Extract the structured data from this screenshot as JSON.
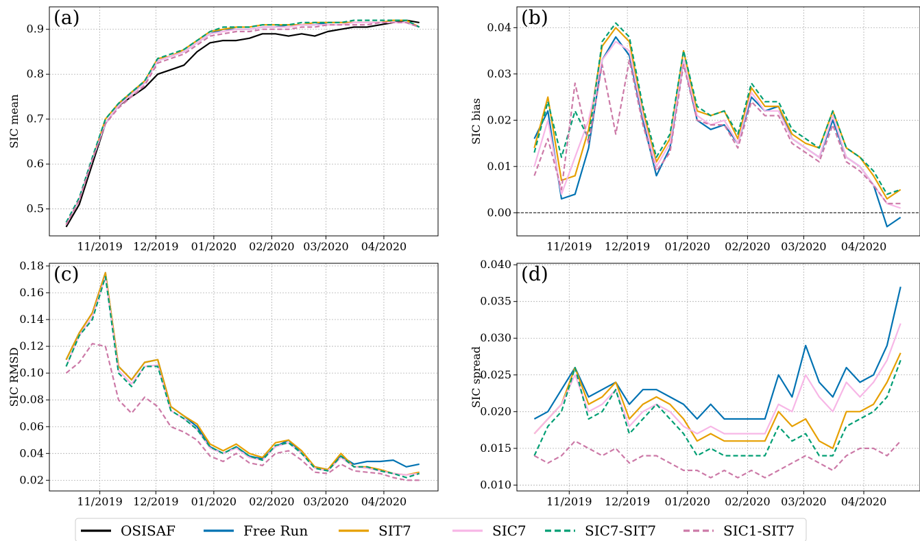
{
  "colors": {
    "OSISAF": "#000000",
    "Free Run": "#0072b2",
    "SIT7": "#e69f00",
    "SIC7": "#f7b6e6",
    "SIC7-SIT7": "#009e73",
    "SIC1-SIT7": "#cc79a7"
  },
  "legend": {
    "entries": [
      {
        "label": "OSISAF",
        "dash": "solid"
      },
      {
        "label": "Free Run",
        "dash": "solid"
      },
      {
        "label": "SIT7",
        "dash": "solid"
      },
      {
        "label": "SIC7",
        "dash": "solid"
      },
      {
        "label": "SIC7-SIT7",
        "dash": "dashed"
      },
      {
        "label": "SIC1-SIT7",
        "dash": "dashed"
      }
    ],
    "placement": "bottom-center"
  },
  "chart_data": [
    {
      "type": "line",
      "panel": "(a)",
      "ylabel": "SIC mean",
      "xlabel": "",
      "ylim": [
        0.44,
        0.95
      ],
      "yticks": [
        "0.5",
        "0.6",
        "0.7",
        "0.8",
        "0.9"
      ],
      "xticks": [
        "11/2019",
        "12/2019",
        "01/2020",
        "02/2020",
        "03/2020",
        "04/2020"
      ],
      "x": [
        "2019-10-14",
        "2019-10-21",
        "2019-10-28",
        "2019-11-04",
        "2019-11-11",
        "2019-11-18",
        "2019-11-25",
        "2019-12-02",
        "2019-12-09",
        "2019-12-16",
        "2019-12-23",
        "2019-12-30",
        "2020-01-06",
        "2020-01-13",
        "2020-01-20",
        "2020-01-27",
        "2020-02-03",
        "2020-02-10",
        "2020-02-17",
        "2020-02-24",
        "2020-03-02",
        "2020-03-09",
        "2020-03-16",
        "2020-03-23",
        "2020-03-30",
        "2020-04-06",
        "2020-04-13",
        "2020-04-20"
      ],
      "grid": true,
      "series": [
        {
          "name": "OSISAF",
          "values": [
            0.46,
            0.51,
            0.6,
            0.69,
            0.73,
            0.75,
            0.77,
            0.8,
            0.81,
            0.82,
            0.85,
            0.87,
            0.875,
            0.875,
            0.88,
            0.89,
            0.89,
            0.885,
            0.89,
            0.885,
            0.895,
            0.9,
            0.905,
            0.905,
            0.91,
            0.915,
            0.92,
            0.915
          ]
        },
        {
          "name": "Free Run",
          "values": [
            0.465,
            0.52,
            0.61,
            0.69,
            0.73,
            0.76,
            0.78,
            0.83,
            0.84,
            0.85,
            0.87,
            0.89,
            0.9,
            0.9,
            0.9,
            0.905,
            0.905,
            0.91,
            0.91,
            0.91,
            0.915,
            0.915,
            0.915,
            0.915,
            0.915,
            0.915,
            0.915,
            0.905
          ]
        },
        {
          "name": "SIT7",
          "values": [
            0.465,
            0.52,
            0.61,
            0.7,
            0.735,
            0.76,
            0.785,
            0.835,
            0.84,
            0.855,
            0.875,
            0.895,
            0.9,
            0.905,
            0.905,
            0.91,
            0.91,
            0.91,
            0.91,
            0.915,
            0.915,
            0.915,
            0.915,
            0.915,
            0.915,
            0.92,
            0.92,
            0.905
          ]
        },
        {
          "name": "SIC7",
          "values": [
            0.465,
            0.52,
            0.61,
            0.69,
            0.73,
            0.755,
            0.78,
            0.83,
            0.84,
            0.85,
            0.87,
            0.89,
            0.895,
            0.9,
            0.9,
            0.905,
            0.905,
            0.905,
            0.91,
            0.91,
            0.91,
            0.91,
            0.915,
            0.915,
            0.915,
            0.915,
            0.915,
            0.905
          ]
        },
        {
          "name": "SIC7-SIT7",
          "values": [
            0.47,
            0.525,
            0.615,
            0.7,
            0.735,
            0.76,
            0.785,
            0.835,
            0.845,
            0.855,
            0.875,
            0.895,
            0.905,
            0.905,
            0.905,
            0.91,
            0.91,
            0.91,
            0.915,
            0.915,
            0.915,
            0.915,
            0.92,
            0.92,
            0.92,
            0.92,
            0.92,
            0.905
          ]
        },
        {
          "name": "SIC1-SIT7",
          "values": [
            0.465,
            0.52,
            0.61,
            0.69,
            0.725,
            0.75,
            0.775,
            0.825,
            0.835,
            0.845,
            0.865,
            0.885,
            0.89,
            0.895,
            0.895,
            0.9,
            0.9,
            0.9,
            0.905,
            0.905,
            0.91,
            0.91,
            0.91,
            0.91,
            0.915,
            0.915,
            0.915,
            0.905
          ]
        }
      ]
    },
    {
      "type": "line",
      "panel": "(b)",
      "ylabel": "SIC bias",
      "xlabel": "",
      "ylim": [
        -0.005,
        0.0445
      ],
      "yticks": [
        "0.00",
        "0.01",
        "0.02",
        "0.03",
        "0.04"
      ],
      "xticks": [
        "11/2019",
        "12/2019",
        "01/2020",
        "02/2020",
        "03/2020",
        "04/2020"
      ],
      "x": [
        "2019-10-14",
        "2019-10-21",
        "2019-10-28",
        "2019-11-04",
        "2019-11-11",
        "2019-11-18",
        "2019-11-25",
        "2019-12-02",
        "2019-12-09",
        "2019-12-16",
        "2019-12-23",
        "2019-12-30",
        "2020-01-06",
        "2020-01-13",
        "2020-01-20",
        "2020-01-27",
        "2020-02-03",
        "2020-02-10",
        "2020-02-17",
        "2020-02-24",
        "2020-03-02",
        "2020-03-09",
        "2020-03-16",
        "2020-03-23",
        "2020-03-30",
        "2020-04-06",
        "2020-04-13",
        "2020-04-20"
      ],
      "reference_line": 0.0,
      "grid": true,
      "series": [
        {
          "name": "Free Run",
          "values": [
            0.016,
            0.022,
            0.003,
            0.004,
            0.014,
            0.033,
            0.038,
            0.034,
            0.02,
            0.008,
            0.014,
            0.033,
            0.02,
            0.018,
            0.019,
            0.015,
            0.025,
            0.022,
            0.023,
            0.016,
            0.014,
            0.012,
            0.02,
            0.012,
            0.01,
            0.006,
            -0.003,
            -0.001
          ]
        },
        {
          "name": "SIT7",
          "values": [
            0.014,
            0.025,
            0.007,
            0.008,
            0.018,
            0.036,
            0.04,
            0.037,
            0.022,
            0.011,
            0.016,
            0.035,
            0.022,
            0.021,
            0.022,
            0.016,
            0.027,
            0.023,
            0.023,
            0.017,
            0.015,
            0.014,
            0.022,
            0.014,
            0.012,
            0.008,
            0.003,
            0.005
          ]
        },
        {
          "name": "SIC7",
          "values": [
            0.01,
            0.02,
            0.004,
            0.012,
            0.02,
            0.033,
            0.037,
            0.035,
            0.021,
            0.01,
            0.015,
            0.033,
            0.021,
            0.019,
            0.02,
            0.015,
            0.026,
            0.022,
            0.022,
            0.016,
            0.014,
            0.012,
            0.021,
            0.012,
            0.01,
            0.006,
            0.002,
            0.001
          ]
        },
        {
          "name": "SIC7-SIT7",
          "values": [
            0.013,
            0.024,
            0.012,
            0.022,
            0.016,
            0.037,
            0.041,
            0.038,
            0.023,
            0.012,
            0.017,
            0.035,
            0.023,
            0.021,
            0.022,
            0.017,
            0.028,
            0.024,
            0.024,
            0.018,
            0.016,
            0.014,
            0.022,
            0.014,
            0.012,
            0.009,
            0.004,
            0.005
          ]
        },
        {
          "name": "SIC1-SIT7",
          "values": [
            0.008,
            0.016,
            0.005,
            0.028,
            0.015,
            0.032,
            0.017,
            0.033,
            0.019,
            0.009,
            0.013,
            0.032,
            0.02,
            0.019,
            0.019,
            0.014,
            0.024,
            0.021,
            0.021,
            0.015,
            0.013,
            0.011,
            0.019,
            0.011,
            0.009,
            0.006,
            0.002,
            0.002
          ]
        }
      ]
    },
    {
      "type": "line",
      "panel": "(c)",
      "ylabel": "SIC RMSD",
      "xlabel": "",
      "ylim": [
        0.012,
        0.182
      ],
      "yticks": [
        "0.02",
        "0.04",
        "0.06",
        "0.08",
        "0.10",
        "0.12",
        "0.14",
        "0.16",
        "0.18"
      ],
      "xticks": [
        "11/2019",
        "12/2019",
        "01/2020",
        "02/2020",
        "03/2020",
        "04/2020"
      ],
      "x": [
        "2019-10-14",
        "2019-10-21",
        "2019-10-28",
        "2019-11-04",
        "2019-11-11",
        "2019-11-18",
        "2019-11-25",
        "2019-12-02",
        "2019-12-09",
        "2019-12-16",
        "2019-12-23",
        "2019-12-30",
        "2020-01-06",
        "2020-01-13",
        "2020-01-20",
        "2020-01-27",
        "2020-02-03",
        "2020-02-10",
        "2020-02-17",
        "2020-02-24",
        "2020-03-02",
        "2020-03-09",
        "2020-03-16",
        "2020-03-23",
        "2020-03-30",
        "2020-04-06",
        "2020-04-13",
        "2020-04-20"
      ],
      "grid": true,
      "series": [
        {
          "name": "Free Run",
          "values": [
            0.11,
            0.13,
            0.145,
            0.175,
            0.105,
            0.095,
            0.108,
            0.11,
            0.075,
            0.068,
            0.06,
            0.045,
            0.04,
            0.045,
            0.038,
            0.036,
            0.045,
            0.05,
            0.04,
            0.03,
            0.028,
            0.038,
            0.032,
            0.034,
            0.034,
            0.035,
            0.03,
            0.032
          ]
        },
        {
          "name": "SIT7",
          "values": [
            0.11,
            0.13,
            0.145,
            0.175,
            0.105,
            0.095,
            0.108,
            0.11,
            0.075,
            0.068,
            0.062,
            0.047,
            0.042,
            0.047,
            0.04,
            0.037,
            0.048,
            0.05,
            0.042,
            0.03,
            0.028,
            0.04,
            0.03,
            0.03,
            0.028,
            0.025,
            0.024,
            0.026
          ]
        },
        {
          "name": "SIC7",
          "values": [
            0.105,
            0.128,
            0.142,
            0.172,
            0.102,
            0.092,
            0.105,
            0.106,
            0.072,
            0.066,
            0.058,
            0.044,
            0.04,
            0.044,
            0.037,
            0.035,
            0.045,
            0.048,
            0.04,
            0.029,
            0.027,
            0.037,
            0.03,
            0.029,
            0.027,
            0.025,
            0.024,
            0.025
          ]
        },
        {
          "name": "SIC7-SIT7",
          "values": [
            0.105,
            0.128,
            0.14,
            0.172,
            0.1,
            0.09,
            0.105,
            0.105,
            0.072,
            0.066,
            0.058,
            0.045,
            0.04,
            0.045,
            0.038,
            0.035,
            0.046,
            0.048,
            0.04,
            0.029,
            0.027,
            0.038,
            0.03,
            0.03,
            0.027,
            0.025,
            0.022,
            0.025
          ]
        },
        {
          "name": "SIC1-SIT7",
          "values": [
            0.1,
            0.108,
            0.122,
            0.12,
            0.08,
            0.07,
            0.082,
            0.075,
            0.06,
            0.056,
            0.05,
            0.038,
            0.034,
            0.04,
            0.033,
            0.031,
            0.04,
            0.042,
            0.035,
            0.026,
            0.025,
            0.032,
            0.027,
            0.026,
            0.025,
            0.022,
            0.02,
            0.02
          ]
        }
      ]
    },
    {
      "type": "line",
      "panel": "(d)",
      "ylabel": "SIC spread",
      "xlabel": "",
      "ylim": [
        0.0092,
        0.0402
      ],
      "yticks": [
        "0.010",
        "0.015",
        "0.020",
        "0.025",
        "0.030",
        "0.035",
        "0.040"
      ],
      "xticks": [
        "11/2019",
        "12/2019",
        "01/2020",
        "02/2020",
        "03/2020",
        "04/2020"
      ],
      "x": [
        "2019-10-14",
        "2019-10-21",
        "2019-10-28",
        "2019-11-04",
        "2019-11-11",
        "2019-11-18",
        "2019-11-25",
        "2019-12-02",
        "2019-12-09",
        "2019-12-16",
        "2019-12-23",
        "2019-12-30",
        "2020-01-06",
        "2020-01-13",
        "2020-01-20",
        "2020-01-27",
        "2020-02-03",
        "2020-02-10",
        "2020-02-17",
        "2020-02-24",
        "2020-03-02",
        "2020-03-09",
        "2020-03-16",
        "2020-03-23",
        "2020-03-30",
        "2020-04-06",
        "2020-04-13",
        "2020-04-20"
      ],
      "grid": true,
      "series": [
        {
          "name": "Free Run",
          "values": [
            0.019,
            0.02,
            0.023,
            0.026,
            0.022,
            0.023,
            0.024,
            0.021,
            0.023,
            0.023,
            0.022,
            0.021,
            0.019,
            0.021,
            0.019,
            0.019,
            0.019,
            0.019,
            0.025,
            0.022,
            0.029,
            0.024,
            0.022,
            0.026,
            0.024,
            0.025,
            0.029,
            0.037
          ]
        },
        {
          "name": "SIT7",
          "values": [
            0.017,
            0.019,
            0.021,
            0.026,
            0.021,
            0.022,
            0.024,
            0.019,
            0.021,
            0.022,
            0.021,
            0.019,
            0.016,
            0.017,
            0.016,
            0.016,
            0.016,
            0.016,
            0.02,
            0.018,
            0.019,
            0.016,
            0.015,
            0.02,
            0.02,
            0.021,
            0.024,
            0.028
          ]
        },
        {
          "name": "SIC7",
          "values": [
            0.017,
            0.019,
            0.021,
            0.025,
            0.02,
            0.021,
            0.023,
            0.018,
            0.02,
            0.021,
            0.02,
            0.018,
            0.017,
            0.018,
            0.017,
            0.017,
            0.017,
            0.017,
            0.021,
            0.02,
            0.025,
            0.022,
            0.02,
            0.024,
            0.022,
            0.024,
            0.027,
            0.032
          ]
        },
        {
          "name": "SIC7-SIT7",
          "values": [
            0.014,
            0.018,
            0.02,
            0.026,
            0.019,
            0.02,
            0.023,
            0.017,
            0.019,
            0.021,
            0.019,
            0.017,
            0.014,
            0.015,
            0.014,
            0.014,
            0.014,
            0.014,
            0.018,
            0.016,
            0.017,
            0.014,
            0.014,
            0.018,
            0.019,
            0.02,
            0.022,
            0.027
          ]
        },
        {
          "name": "SIC1-SIT7",
          "values": [
            0.014,
            0.013,
            0.014,
            0.016,
            0.015,
            0.014,
            0.015,
            0.013,
            0.014,
            0.014,
            0.013,
            0.012,
            0.012,
            0.011,
            0.012,
            0.011,
            0.012,
            0.011,
            0.012,
            0.013,
            0.014,
            0.013,
            0.012,
            0.014,
            0.015,
            0.015,
            0.014,
            0.016
          ]
        }
      ]
    }
  ]
}
